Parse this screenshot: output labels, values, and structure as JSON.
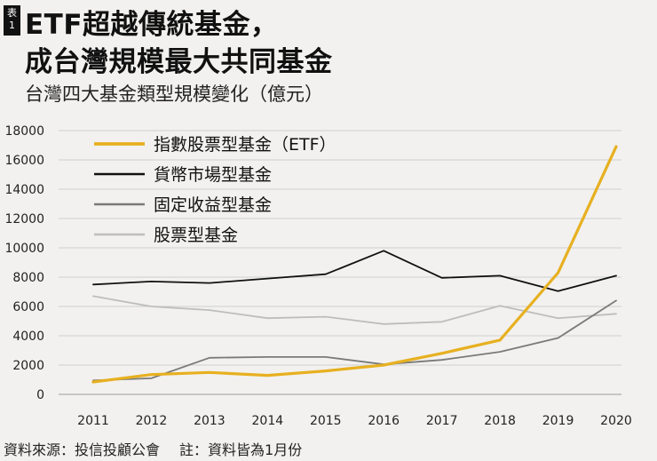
{
  "header": {
    "tag_label": [
      "表",
      "1"
    ],
    "title_line1": "ETF超越傳統基金，",
    "title_line2": "成台灣規模最大共同基金",
    "subtitle": "台灣四大基金類型規模變化（億元）"
  },
  "footer": {
    "source": "資料來源：投信投顧公會",
    "note": "註：資料皆為1月份"
  },
  "chart_data": {
    "type": "line",
    "title": "台灣四大基金類型規模變化（億元）",
    "x": [
      2011,
      2012,
      2013,
      2014,
      2015,
      2016,
      2017,
      2018,
      2019,
      2020
    ],
    "ylim": [
      0,
      18000
    ],
    "yticks": [
      0,
      2000,
      4000,
      6000,
      8000,
      10000,
      12000,
      14000,
      16000,
      18000
    ],
    "grid": "horizontal",
    "legend_position": "top-left",
    "series": [
      {
        "name": "指數股票型基金（ETF）",
        "color": "#e7b020",
        "width": 3.2,
        "values": [
          850,
          1350,
          1500,
          1300,
          1600,
          2000,
          2800,
          3700,
          8300,
          16900
        ]
      },
      {
        "name": "貨幣市場型基金",
        "color": "#111111",
        "width": 1.8,
        "values": [
          7500,
          7700,
          7600,
          7900,
          8200,
          9800,
          7950,
          8100,
          7050,
          8100
        ]
      },
      {
        "name": "固定收益型基金",
        "color": "#7a7a7a",
        "width": 1.8,
        "values": [
          950,
          1100,
          2500,
          2550,
          2550,
          2050,
          2350,
          2900,
          3850,
          6400
        ]
      },
      {
        "name": "股票型基金",
        "color": "#bdbdbd",
        "width": 1.8,
        "values": [
          6700,
          6000,
          5750,
          5200,
          5300,
          4800,
          4950,
          6050,
          5200,
          5500
        ]
      }
    ]
  }
}
